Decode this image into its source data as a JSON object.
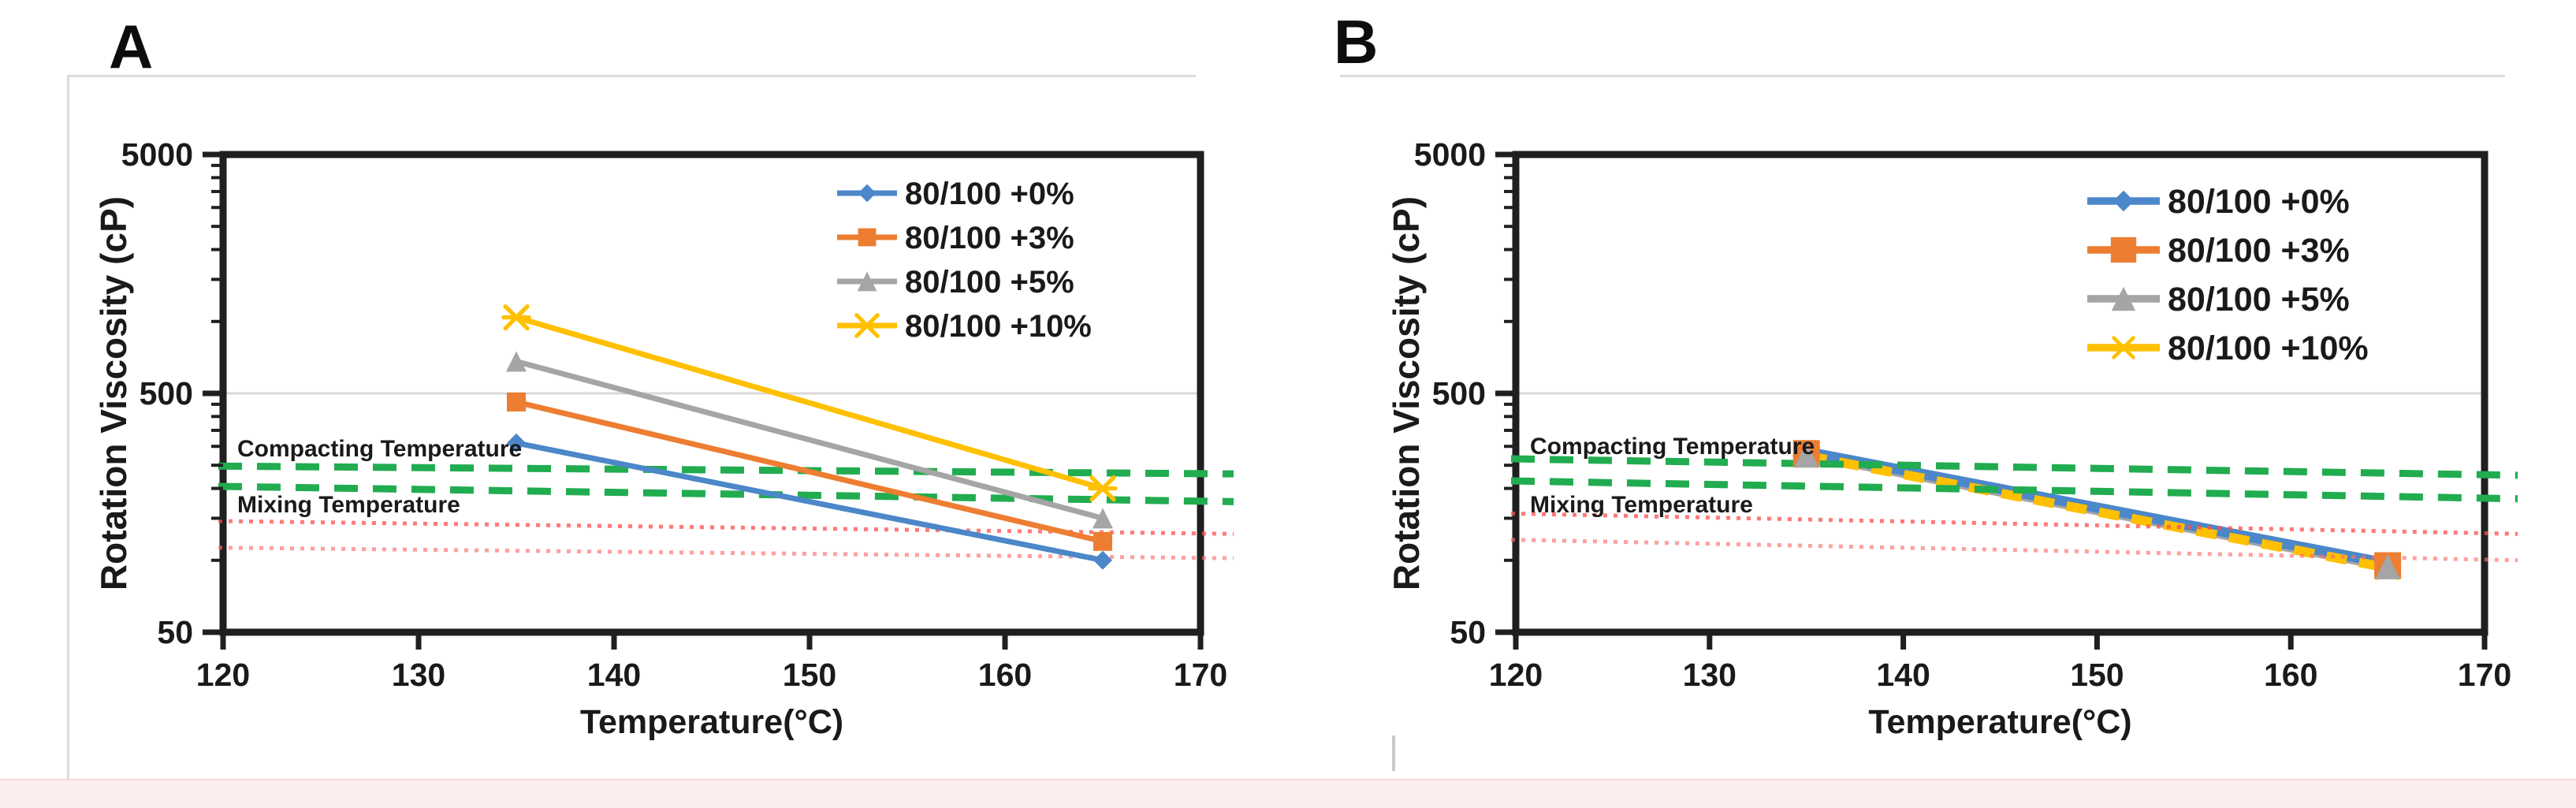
{
  "page": {
    "panel_a_label": "A",
    "panel_b_label": "B"
  },
  "colors": {
    "blue": "#4B87C9",
    "orange": "#ED7D31",
    "gray": "#A5A5A5",
    "yellow": "#FFC000",
    "green_ref": "#21AC50",
    "red_ref": "#FF4D4D",
    "axis": "#1a1a1a",
    "gridline": "#d9d9d9"
  },
  "chart_data": [
    {
      "id": "chartA",
      "panel": "A",
      "type": "line",
      "xlabel": "Temperature(°C)",
      "ylabel": "Rotation Viscosity (cP)",
      "y_scale": "log",
      "xlim": [
        120,
        170
      ],
      "ylim": [
        50,
        5000
      ],
      "x_ticks": [
        120,
        130,
        140,
        150,
        160,
        170
      ],
      "y_ticks": [
        5000,
        500,
        50
      ],
      "y_minor_ticks": [
        4500,
        4000,
        3500,
        3000,
        2500,
        2000,
        1500,
        1000,
        450,
        400,
        350,
        300,
        250,
        200,
        150,
        100
      ],
      "grid_y": [
        500
      ],
      "x": [
        135,
        165
      ],
      "series": [
        {
          "name": "80/100 +0%",
          "color": "#4B87C9",
          "marker": "diamond",
          "values": [
            310,
            100
          ]
        },
        {
          "name": "80/100 +3%",
          "color": "#ED7D31",
          "marker": "square",
          "values": [
            460,
            120
          ]
        },
        {
          "name": "80/100 +5%",
          "color": "#A5A5A5",
          "marker": "triangle",
          "values": [
            680,
            150
          ]
        },
        {
          "name": "80/100 +10%",
          "color": "#FFC000",
          "marker": "x",
          "values": [
            1040,
            200
          ]
        }
      ],
      "reference_lines": [
        {
          "name": "compacting-upper",
          "color": "#21AC50",
          "style": "dashed",
          "from": 248,
          "to": 230,
          "opacity": 1
        },
        {
          "name": "compacting-lower",
          "color": "#21AC50",
          "style": "dashed",
          "from": 204,
          "to": 176,
          "opacity": 1
        },
        {
          "name": "mixing-upper",
          "color": "#FF4D4D",
          "style": "dotted",
          "from": 146,
          "to": 129,
          "opacity": 0.75
        },
        {
          "name": "mixing-lower",
          "color": "#FF6E6E",
          "style": "dotted",
          "from": 113,
          "to": 102,
          "opacity": 0.65
        }
      ],
      "annotations": [
        {
          "text": "Compacting Temperature",
          "value": 294
        },
        {
          "text": "Mixing Temperature",
          "value": 171
        }
      ],
      "legend_position": "upper-right",
      "series_over_reference": true
    },
    {
      "id": "chartB",
      "panel": "B",
      "type": "line",
      "xlabel": "Temperature(°C)",
      "ylabel": "Rotation Viscosity (cP)",
      "y_scale": "log",
      "xlim": [
        120,
        170
      ],
      "ylim": [
        50,
        5000
      ],
      "x_ticks": [
        120,
        130,
        140,
        150,
        160,
        170
      ],
      "y_ticks": [
        5000,
        500,
        50
      ],
      "y_minor_ticks": [
        4500,
        4000,
        3500,
        3000,
        2500,
        2000,
        1500,
        1000,
        450,
        400,
        350,
        300,
        250,
        200,
        150,
        100
      ],
      "grid_y": [
        500
      ],
      "x": [
        135,
        165
      ],
      "series": [
        {
          "name": "80/100 +0%",
          "color": "#4B87C9",
          "marker": "diamond",
          "values": [
            285,
            97
          ]
        },
        {
          "name": "80/100 +3%",
          "color": "#ED7D31",
          "marker": "square",
          "values": [
            280,
            95
          ]
        },
        {
          "name": "80/100 +5%",
          "color": "#A5A5A5",
          "marker": "triangle",
          "values": [
            276,
            94
          ]
        },
        {
          "name": "80/100 +10%",
          "color": "#FFC000",
          "marker": "x",
          "values": [
            274,
            93
          ],
          "dash": "26 16"
        }
      ],
      "reference_lines": [
        {
          "name": "compacting-upper",
          "color": "#21AC50",
          "style": "dashed",
          "from": 266,
          "to": 227,
          "opacity": 1
        },
        {
          "name": "compacting-lower",
          "color": "#21AC50",
          "style": "dashed",
          "from": 215,
          "to": 181,
          "opacity": 1
        },
        {
          "name": "mixing-upper",
          "color": "#FF4D4D",
          "style": "dotted",
          "from": 157,
          "to": 129,
          "opacity": 0.75
        },
        {
          "name": "mixing-lower",
          "color": "#FF6E6E",
          "style": "dotted",
          "from": 122,
          "to": 100,
          "opacity": 0.65
        }
      ],
      "annotations": [
        {
          "text": "Compacting Temperature",
          "value": 300
        },
        {
          "text": "Mixing Temperature",
          "value": 171
        }
      ],
      "legend_position": "upper-right",
      "series_over_reference": false
    }
  ]
}
